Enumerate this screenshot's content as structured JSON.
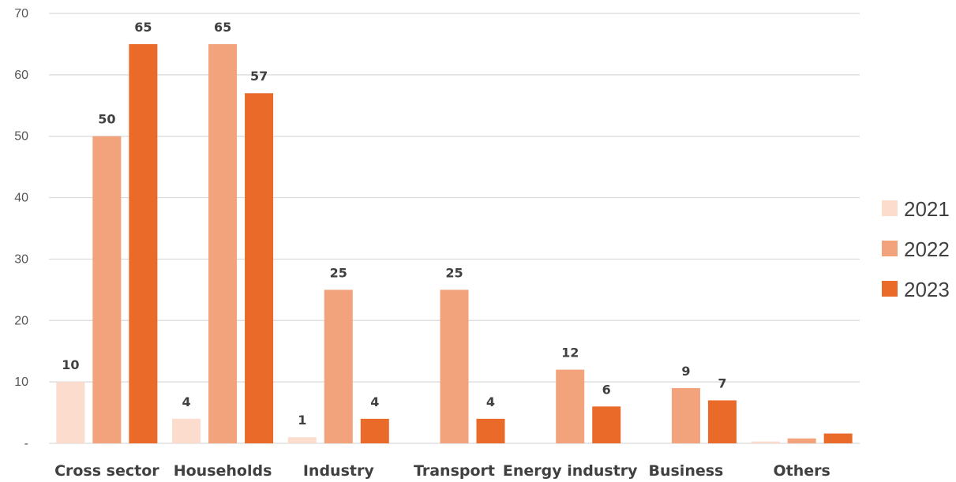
{
  "chart_data": {
    "type": "bar",
    "categories": [
      "Cross sector",
      "Households",
      "Industry",
      "Transport",
      "Energy industry",
      "Business",
      "Others"
    ],
    "series": [
      {
        "name": "2021",
        "color": "#fbdccd",
        "values": [
          10,
          4,
          1,
          0,
          0,
          0,
          0.3
        ],
        "labels": [
          "10",
          "4",
          "1",
          "",
          "",
          "",
          ""
        ]
      },
      {
        "name": "2022",
        "color": "#f2a37c",
        "values": [
          50,
          65,
          25,
          25,
          12,
          9,
          0.8
        ],
        "labels": [
          "50",
          "65",
          "25",
          "25",
          "12",
          "9",
          ""
        ]
      },
      {
        "name": "2023",
        "color": "#ea6a2a",
        "values": [
          65,
          57,
          4,
          4,
          6,
          7,
          1.6
        ],
        "labels": [
          "65",
          "57",
          "4",
          "4",
          "6",
          "7",
          ""
        ]
      }
    ],
    "y_ticks": [
      "-",
      "10",
      "20",
      "30",
      "40",
      "50",
      "60",
      "70"
    ],
    "ylim": [
      0,
      70
    ],
    "grid": true,
    "legend_position": "right"
  }
}
